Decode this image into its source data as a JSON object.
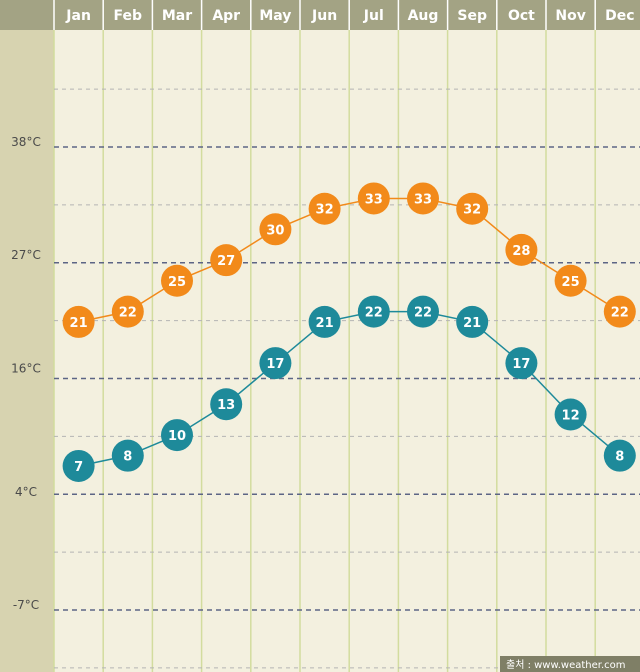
{
  "chart_data": {
    "type": "line",
    "categories": [
      "Jan",
      "Feb",
      "Mar",
      "Apr",
      "May",
      "Jun",
      "Jul",
      "Aug",
      "Sep",
      "Oct",
      "Nov",
      "Dec"
    ],
    "series": [
      {
        "values": [
          21,
          22,
          25,
          27,
          30,
          32,
          33,
          33,
          32,
          28,
          25,
          22
        ],
        "color": "#f28a1a"
      },
      {
        "values": [
          7,
          8,
          10,
          13,
          17,
          21,
          22,
          22,
          21,
          17,
          12,
          8
        ],
        "color": "#1e8a9a"
      }
    ],
    "y_ticks": [
      {
        "value": 38,
        "label": "38°C"
      },
      {
        "value": 27,
        "label": "27°C"
      },
      {
        "value": 16,
        "label": "16°C"
      },
      {
        "value": 4,
        "label": "4°C"
      },
      {
        "value": -7,
        "label": "-7°C"
      }
    ],
    "ylim": [
      -12,
      49
    ],
    "grid": true,
    "colors": {
      "header_bg": "#a3a384",
      "axis_bg": "#d7d3b0",
      "plot_bg": "#f3f0df",
      "vgrid": "#d2dc9e",
      "hgrid_major": "#5c6585",
      "hgrid_minor": "#b4b4b4"
    }
  },
  "source": "출처 : www.weather.com"
}
